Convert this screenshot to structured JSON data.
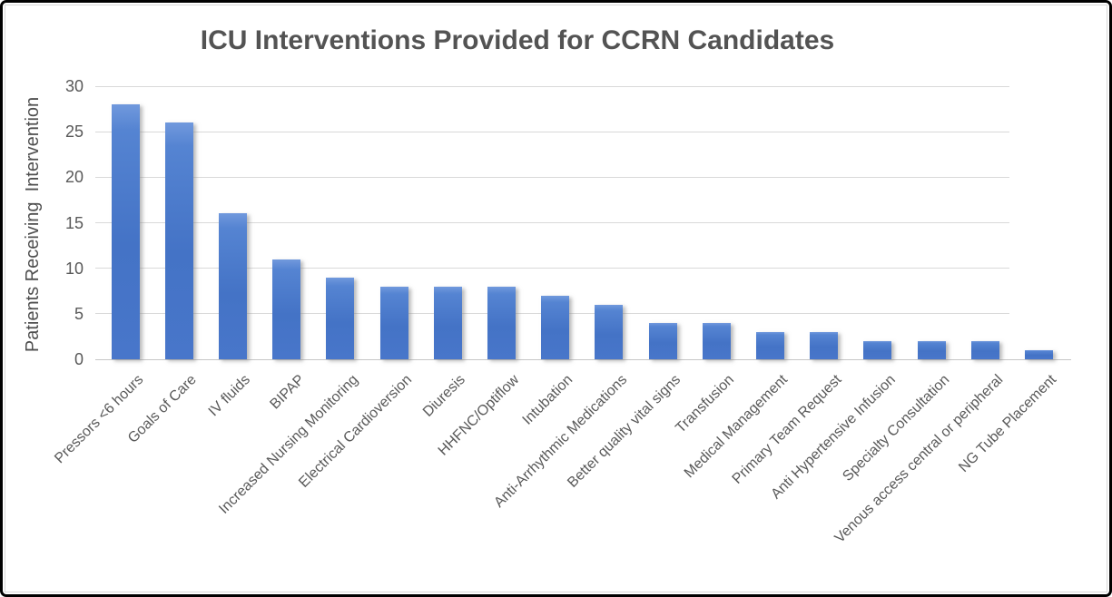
{
  "chart_data": {
    "type": "bar",
    "title": "ICU Interventions Provided for CCRN Candidates",
    "ylabel": "Patients Receiving  Intervention",
    "xlabel": "",
    "categories": [
      "Pressors <6 hours",
      "Goals of Care",
      "IV fluids",
      "BIPAP",
      "Increased Nursing Monitoring",
      "Electrical Cardioversion",
      "Diuresis",
      "HHFNC/Optiflow",
      "Intubation",
      "Anti-Arrhythmic Medications",
      "Better quality vital signs",
      "Transfusion",
      "Medical Management",
      "Primary Team Request",
      "Anti Hypertensive Infusion",
      "Specialty Consultation",
      "Venous access central or peripheral",
      "NG Tube Placement"
    ],
    "values": [
      28,
      26,
      16,
      11,
      9,
      8,
      8,
      8,
      7,
      6,
      4,
      4,
      3,
      3,
      2,
      2,
      2,
      1
    ],
    "ylim": [
      0,
      30
    ],
    "yticks": [
      0,
      5,
      10,
      15,
      20,
      25,
      30
    ],
    "grid": "horizontal-major",
    "legend": "none",
    "colors": {
      "bar_fill": "#4472c4",
      "bar_fill_light": "#7199dd",
      "gridline": "#d9d9d9",
      "axis_line": "#c6c6c6",
      "title_text": "#535353",
      "axis_text": "#595959",
      "ylabel_text": "#4f4f4f",
      "frame_border": "#000000",
      "chart_border": "#d8d8d8",
      "background": "#ffffff"
    }
  }
}
